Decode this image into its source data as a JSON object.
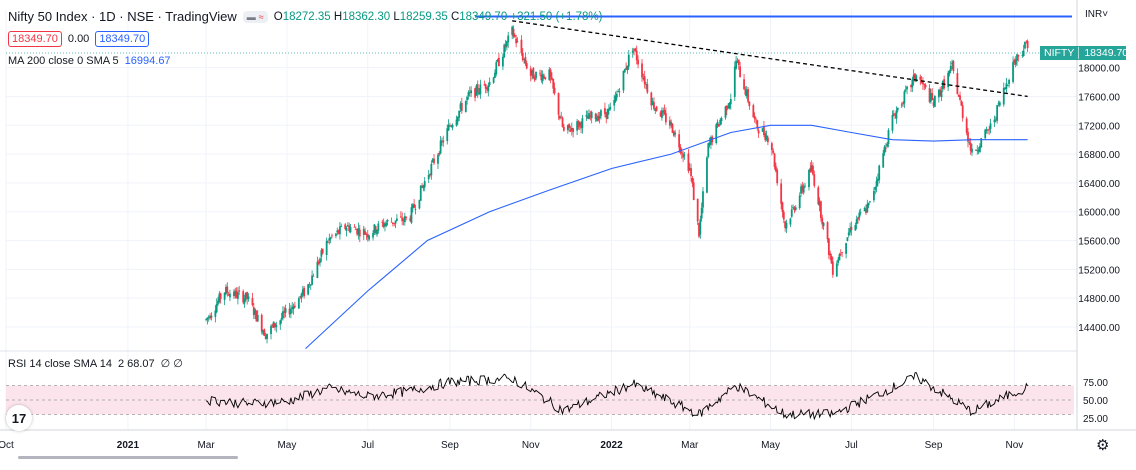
{
  "legend": {
    "title": "Nifty 50 Index · 1D · NSE · TradingView",
    "open_label": "O",
    "open": "18272.35",
    "high_label": "H",
    "high": "18362.30",
    "low_label": "L",
    "low": "18259.35",
    "close_label": "C",
    "close": "18349.70",
    "change": "+321.50 (+1.78%)",
    "bid": "18349.70",
    "spread": "0.00",
    "ask": "18349.70",
    "ma_label": "MA 200 close 0 SMA 5",
    "ma_value": "16994.67",
    "rsi_label": "RSI 14 close SMA 14",
    "rsi_value": "2  68.07",
    "rsi_na": "∅  ∅"
  },
  "currency": "INR",
  "price_tag": {
    "symbol": "NIFTY",
    "value": "18349.70"
  },
  "colors": {
    "up": "#089981",
    "down": "#f23645",
    "ma": "#2962ff",
    "hline": "#2962ff",
    "trend": "#000000",
    "rsi_band": "#fce4ec"
  },
  "icons": {
    "logo": "tradingview-logo",
    "settings": "gear-icon"
  },
  "chart_data": [
    {
      "type": "candlestick",
      "title": "Nifty 50 Index",
      "interval": "1D",
      "exchange": "NSE",
      "x_ticks": [
        "Oct",
        "2021",
        "Mar",
        "May",
        "Jul",
        "Sep",
        "Nov",
        "2022",
        "Mar",
        "May",
        "Jul",
        "Sep",
        "Nov"
      ],
      "y_ticks": [
        14400,
        14800,
        15200,
        15600,
        16000,
        16400,
        16800,
        17200,
        17600,
        18000
      ],
      "ylim": [
        14150,
        18800
      ],
      "last_close": 18349.7,
      "price_path": [
        [
          "2021-03-01",
          14500
        ],
        [
          "2021-03-15",
          14900
        ],
        [
          "2021-04-01",
          14800
        ],
        [
          "2021-04-15",
          14300
        ],
        [
          "2021-05-01",
          14600
        ],
        [
          "2021-05-15",
          14900
        ],
        [
          "2021-06-01",
          15600
        ],
        [
          "2021-06-15",
          15800
        ],
        [
          "2021-07-01",
          15700
        ],
        [
          "2021-07-15",
          15850
        ],
        [
          "2021-08-01",
          15900
        ],
        [
          "2021-08-15",
          16500
        ],
        [
          "2021-09-01",
          17200
        ],
        [
          "2021-09-15",
          17600
        ],
        [
          "2021-10-01",
          17800
        ],
        [
          "2021-10-18",
          18500
        ],
        [
          "2021-11-01",
          17900
        ],
        [
          "2021-11-15",
          17900
        ],
        [
          "2021-11-26",
          17100
        ],
        [
          "2021-12-15",
          17300
        ],
        [
          "2022-01-01",
          17400
        ],
        [
          "2022-01-17",
          18300
        ],
        [
          "2022-02-01",
          17500
        ],
        [
          "2022-02-15",
          17200
        ],
        [
          "2022-03-01",
          16600
        ],
        [
          "2022-03-08",
          15700
        ],
        [
          "2022-03-15",
          16900
        ],
        [
          "2022-04-01",
          17600
        ],
        [
          "2022-04-05",
          18100
        ],
        [
          "2022-04-20",
          17200
        ],
        [
          "2022-05-01",
          17000
        ],
        [
          "2022-05-12",
          15800
        ],
        [
          "2022-06-01",
          16600
        ],
        [
          "2022-06-17",
          15200
        ],
        [
          "2022-07-01",
          15800
        ],
        [
          "2022-07-15",
          16100
        ],
        [
          "2022-08-01",
          17300
        ],
        [
          "2022-08-19",
          17900
        ],
        [
          "2022-09-01",
          17500
        ],
        [
          "2022-09-15",
          18000
        ],
        [
          "2022-09-30",
          16800
        ],
        [
          "2022-10-15",
          17200
        ],
        [
          "2022-11-01",
          18100
        ],
        [
          "2022-11-11",
          18350
        ]
      ],
      "series": [
        {
          "type": "line",
          "indicator": "MA 200 close SMA 5",
          "values": [
            [
              "2021-05-15",
              14100
            ],
            [
              "2021-07-01",
              14900
            ],
            [
              "2021-08-15",
              15600
            ],
            [
              "2021-10-01",
              16000
            ],
            [
              "2021-11-15",
              16300
            ],
            [
              "2022-01-01",
              16600
            ],
            [
              "2022-02-15",
              16800
            ],
            [
              "2022-04-01",
              17100
            ],
            [
              "2022-05-01",
              17200
            ],
            [
              "2022-06-01",
              17200
            ],
            [
              "2022-07-01",
              17100
            ],
            [
              "2022-08-01",
              17000
            ],
            [
              "2022-09-01",
              16980
            ],
            [
              "2022-10-01",
              17000
            ],
            [
              "2022-11-11",
              17000
            ]
          ]
        },
        {
          "type": "hline",
          "value": 18710
        },
        {
          "type": "trendline",
          "dashed": true,
          "from": [
            "2021-10-18",
            18650
          ],
          "to": [
            "2022-11-11",
            17600
          ]
        }
      ]
    },
    {
      "type": "line",
      "title": "RSI 14 close SMA 14",
      "y_ticks": [
        25.0,
        50.0,
        75.0
      ],
      "bands": [
        30,
        70
      ],
      "last_value": 68.07,
      "path": [
        [
          "2021-03-01",
          50
        ],
        [
          "2021-04-01",
          45
        ],
        [
          "2021-05-01",
          48
        ],
        [
          "2021-06-01",
          66
        ],
        [
          "2021-07-01",
          55
        ],
        [
          "2021-08-01",
          62
        ],
        [
          "2021-09-01",
          75
        ],
        [
          "2021-10-18",
          80
        ],
        [
          "2021-11-26",
          35
        ],
        [
          "2022-01-17",
          72
        ],
        [
          "2022-03-08",
          30
        ],
        [
          "2022-04-05",
          70
        ],
        [
          "2022-05-12",
          30
        ],
        [
          "2022-06-17",
          30
        ],
        [
          "2022-08-19",
          82
        ],
        [
          "2022-09-30",
          34
        ],
        [
          "2022-11-11",
          68
        ]
      ]
    }
  ]
}
